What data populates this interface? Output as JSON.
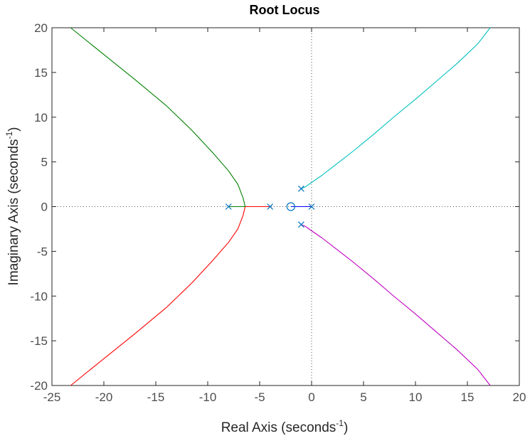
{
  "chart_data": {
    "type": "line",
    "title": "Root Locus",
    "xlabel": {
      "prefix": "Real Axis (seconds",
      "sup": "-1",
      "suffix": ")"
    },
    "ylabel": {
      "prefix": "Imaginary Axis (seconds",
      "sup": "-1",
      "suffix": ")"
    },
    "xlim": [
      -25,
      20
    ],
    "ylim": [
      -20,
      20
    ],
    "xticks": [
      -25,
      -20,
      -15,
      -10,
      -5,
      0,
      5,
      10,
      15,
      20
    ],
    "yticks": [
      -20,
      -15,
      -10,
      -5,
      0,
      5,
      10,
      15,
      20
    ],
    "grid": false,
    "zero_lines": "dotted",
    "poles": [
      {
        "x": -8,
        "y": 0
      },
      {
        "x": -4,
        "y": 0
      },
      {
        "x": 0,
        "y": 0
      },
      {
        "x": -1,
        "y": 2
      },
      {
        "x": -1,
        "y": -2
      }
    ],
    "zeros": [
      {
        "x": -2,
        "y": 0
      }
    ],
    "marker_color": "#0072BD",
    "series": [
      {
        "color": "#0000FF",
        "points": [
          [
            0,
            0
          ],
          [
            -2,
            0
          ]
        ]
      },
      {
        "color": "#00BFBF",
        "points": [
          [
            -1,
            2
          ],
          [
            -0.6,
            2.2
          ],
          [
            0,
            2.7
          ],
          [
            1,
            3.5
          ],
          [
            2,
            4.4
          ],
          [
            3,
            5.3
          ],
          [
            4,
            6.2
          ],
          [
            6,
            8.1
          ],
          [
            8,
            10.1
          ],
          [
            10,
            12.0
          ],
          [
            12,
            14.0
          ],
          [
            14,
            16.0
          ],
          [
            16,
            18.2
          ],
          [
            17.2,
            20
          ]
        ]
      },
      {
        "color": "#BF00BF",
        "points": [
          [
            -1,
            -2
          ],
          [
            -0.6,
            -2.2
          ],
          [
            0,
            -2.7
          ],
          [
            1,
            -3.5
          ],
          [
            2,
            -4.4
          ],
          [
            3,
            -5.3
          ],
          [
            4,
            -6.2
          ],
          [
            6,
            -8.1
          ],
          [
            8,
            -10.1
          ],
          [
            10,
            -12.0
          ],
          [
            12,
            -14.0
          ],
          [
            14,
            -16.0
          ],
          [
            16,
            -18.2
          ],
          [
            17.2,
            -20
          ]
        ]
      },
      {
        "color": "#FF0000",
        "points": [
          [
            -4,
            0
          ],
          [
            -6.4,
            0
          ],
          [
            -6.6,
            -1
          ],
          [
            -7.1,
            -2.5
          ],
          [
            -8,
            -4
          ],
          [
            -9.5,
            -6
          ],
          [
            -11.5,
            -8.5
          ],
          [
            -14,
            -11.3
          ],
          [
            -17,
            -14.2
          ],
          [
            -20,
            -17
          ],
          [
            -23.2,
            -20
          ]
        ]
      },
      {
        "color": "#008000",
        "points": [
          [
            -8,
            0
          ],
          [
            -6.4,
            0
          ],
          [
            -6.6,
            1
          ],
          [
            -7.1,
            2.5
          ],
          [
            -8,
            4
          ],
          [
            -9.5,
            6
          ],
          [
            -11.5,
            8.5
          ],
          [
            -14,
            11.3
          ],
          [
            -17,
            14.2
          ],
          [
            -20,
            17
          ],
          [
            -23.2,
            20
          ]
        ]
      }
    ]
  }
}
